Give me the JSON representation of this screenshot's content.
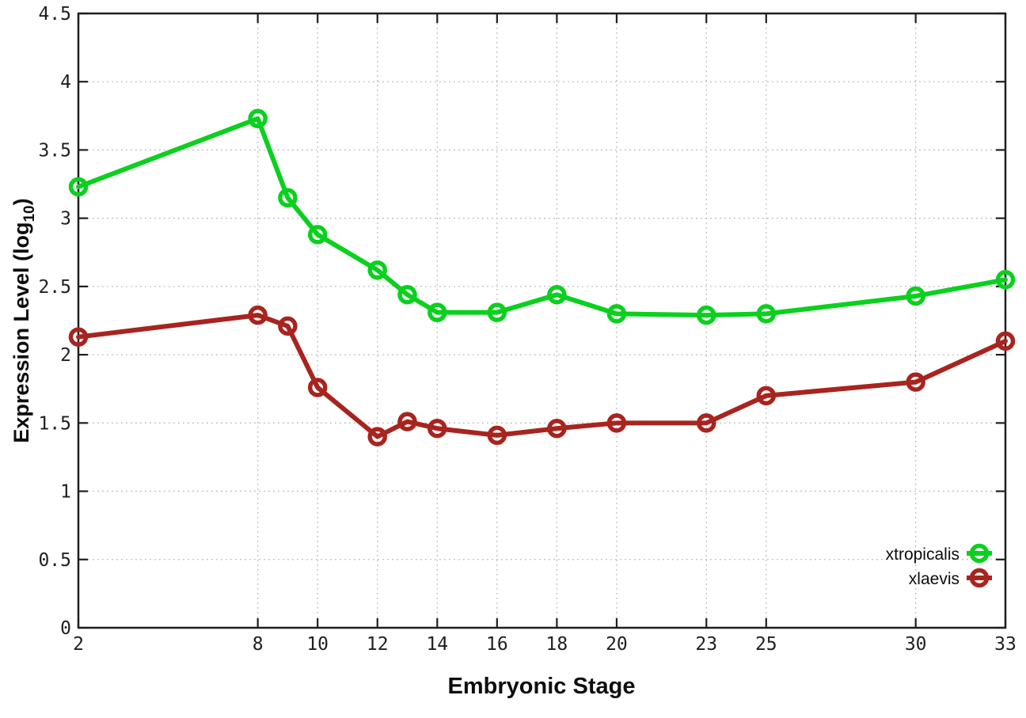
{
  "chart_data": {
    "type": "line",
    "title": "",
    "xlabel": "Embryonic Stage",
    "ylabel": {
      "prefix": "Expression Level (log",
      "sub": "10",
      "suffix": ")"
    },
    "xlim": [
      2,
      33
    ],
    "ylim": [
      0,
      4.5
    ],
    "xticks": [
      2,
      8,
      10,
      12,
      14,
      16,
      18,
      20,
      23,
      25,
      30,
      33
    ],
    "yticks": [
      0,
      0.5,
      1,
      1.5,
      2,
      2.5,
      3,
      3.5,
      4,
      4.5
    ],
    "grid": true,
    "legend_position": "inside-bottom-right",
    "marker": "open-circle",
    "x": [
      2,
      8,
      9,
      10,
      12,
      13,
      14,
      16,
      18,
      20,
      23,
      25,
      30,
      33
    ],
    "series": [
      {
        "name": "xtropicalis",
        "color": "#0bd01e",
        "values": [
          3.23,
          3.73,
          3.15,
          2.88,
          2.62,
          2.44,
          2.31,
          2.31,
          2.44,
          2.3,
          2.29,
          2.3,
          2.43,
          2.55
        ]
      },
      {
        "name": "xlaevis",
        "color": "#a8241f",
        "values": [
          2.13,
          2.29,
          2.21,
          1.76,
          1.4,
          1.51,
          1.46,
          1.41,
          1.46,
          1.5,
          1.5,
          1.7,
          1.8,
          2.1
        ]
      }
    ],
    "colors": {
      "axis": "#1f1f1f",
      "grid": "#b8b8b8",
      "background": "#ffffff"
    }
  }
}
